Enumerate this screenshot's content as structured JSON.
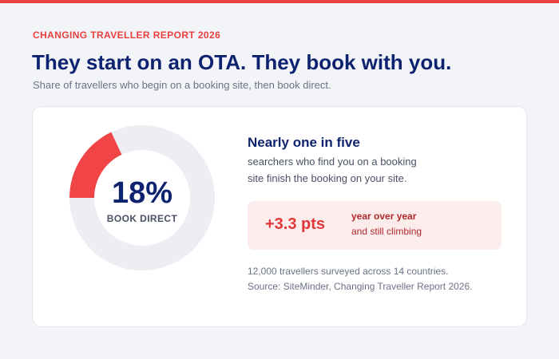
{
  "chart_data": {
    "type": "donut",
    "eyebrow": "CHANGING TRAVELLER REPORT 2026",
    "title": "They start on an OTA. They book with you.",
    "subtitle": "Share of travellers who begin on a booking site, then book direct.",
    "categories": [
      "BOOK DIRECT",
      null
    ],
    "values": [
      18,
      82
    ],
    "value_labels": [
      "18%",
      null
    ],
    "colors": [
      "#f04446",
      "#eceef4"
    ]
  },
  "callout": {
    "headline": "Nearly one in five",
    "body": [
      "searchers who find you on a booking",
      "site finish the booking on your site."
    ],
    "delta": "+3.3 pts",
    "notes": [
      "year over year",
      "and still climbing"
    ]
  },
  "footnote": [
    "12,000 travellers surveyed across 14 countries.",
    "Source: SiteMinder, Changing Traveller Report 2026."
  ]
}
